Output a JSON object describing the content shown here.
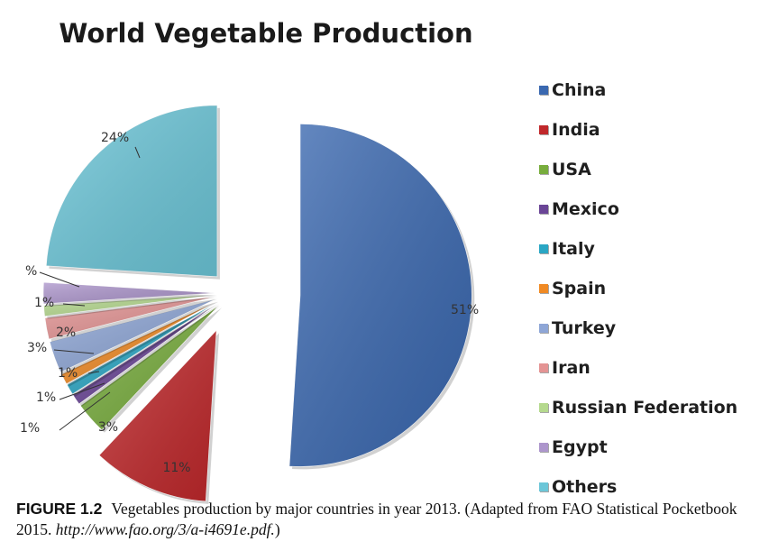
{
  "chart_data": {
    "type": "pie",
    "title": "World Vegetable Production",
    "slices": [
      {
        "name": "China",
        "value": 51,
        "label": "51%",
        "color": "#3a68b0"
      },
      {
        "name": "India",
        "value": 11,
        "label": "11%",
        "color": "#c0282b"
      },
      {
        "name": "USA",
        "value": 3,
        "label": "3%",
        "color": "#78ad3d"
      },
      {
        "name": "Mexico",
        "value": 1,
        "label": "1%",
        "color": "#6a4596"
      },
      {
        "name": "Italy",
        "value": 1,
        "label": "1%",
        "color": "#2aa6c4"
      },
      {
        "name": "Spain",
        "value": 1,
        "label": "1%",
        "color": "#f08a24"
      },
      {
        "name": "Turkey",
        "value": 3,
        "label": "3%",
        "color": "#8ea6d6"
      },
      {
        "name": "Iran",
        "value": 2,
        "label": "2%",
        "color": "#e49494"
      },
      {
        "name": "Russian Federation",
        "value": 1,
        "label": "1%",
        "color": "#b5d98e"
      },
      {
        "name": "Egypt",
        "value": 2,
        "label": "%",
        "color": "#ad96cc"
      },
      {
        "name": "Others",
        "value": 24,
        "label": "24%",
        "color": "#6cc6d8"
      }
    ],
    "legend_position": "right"
  },
  "caption": {
    "figure_label": "FIGURE 1.2",
    "text": "Vegetables production by major countries in year 2013. (Adapted from FAO Statistical Pocketbook 2015. ",
    "url": "http://www.fao.org/3/a-i4691e.pdf.",
    "closing": ")"
  }
}
